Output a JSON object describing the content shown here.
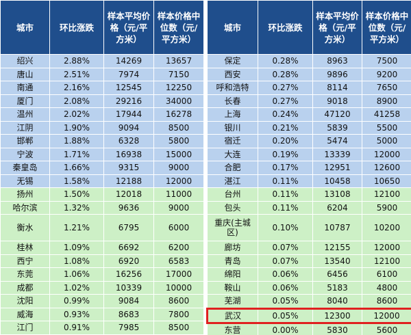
{
  "tables": [
    {
      "header": [
        "城市",
        "环比涨跌",
        "样本平均价格（元/平方米）",
        "样本价格中位数（元/平方米）"
      ],
      "rows": [
        [
          "绍兴",
          "2.88%",
          "14269",
          "13657"
        ],
        [
          "唐山",
          "2.51%",
          "7974",
          "7150"
        ],
        [
          "南通",
          "2.16%",
          "12545",
          "12250"
        ],
        [
          "厦门",
          "2.08%",
          "29216",
          "34000"
        ],
        [
          "温州",
          "2.02%",
          "17944",
          "16278"
        ],
        [
          "江阴",
          "1.90%",
          "9094",
          "8500"
        ],
        [
          "邯郸",
          "1.88%",
          "6328",
          "5800"
        ],
        [
          "宁波",
          "1.71%",
          "16938",
          "15000"
        ],
        [
          "秦皇岛",
          "1.66%",
          "9315",
          "9000"
        ],
        [
          "无锡",
          "1.58%",
          "12188",
          "12000"
        ],
        [
          "扬州",
          "1.50%",
          "12018",
          "11000"
        ],
        [
          "哈尔滨",
          "1.32%",
          "9636",
          "9000"
        ],
        [
          "衡水",
          "1.21%",
          "6795",
          "6000"
        ],
        [
          "桂林",
          "1.09%",
          "6692",
          "6200"
        ],
        [
          "西宁",
          "1.08%",
          "6920",
          "6583"
        ],
        [
          "东莞",
          "1.06%",
          "16256",
          "17000"
        ],
        [
          "成都",
          "1.02%",
          "10339",
          "10000"
        ],
        [
          "沈阳",
          "0.99%",
          "9084",
          "8600"
        ],
        [
          "威海",
          "0.93%",
          "8683",
          "7800"
        ],
        [
          "江门",
          "0.91%",
          "7985",
          "8500"
        ]
      ]
    },
    {
      "header": [
        "城市",
        "环比涨跌",
        "样本平均价格（元/平方米）",
        "样本价格中位数（元/平方米）"
      ],
      "rows": [
        [
          "保定",
          "0.28%",
          "8963",
          "7500"
        ],
        [
          "西安",
          "0.28%",
          "9896",
          "9200"
        ],
        [
          "呼和浩特",
          "0.27%",
          "8114",
          "7650"
        ],
        [
          "长春",
          "0.27%",
          "9018",
          "8900"
        ],
        [
          "上海",
          "0.24%",
          "47120",
          "41258"
        ],
        [
          "银川",
          "0.21%",
          "5839",
          "5500"
        ],
        [
          "宿迁",
          "0.20%",
          "5474",
          "5000"
        ],
        [
          "大连",
          "0.19%",
          "13339",
          "12000"
        ],
        [
          "合肥",
          "0.17%",
          "12951",
          "12600"
        ],
        [
          "湛江",
          "0.11%",
          "10458",
          "10650"
        ],
        [
          "台州",
          "0.11%",
          "13108",
          "12100"
        ],
        [
          "包头",
          "0.11%",
          "6204",
          "5900"
        ],
        [
          "重庆(主城区)",
          "0.10%",
          "10787",
          "10200"
        ],
        [
          "廊坊",
          "0.07%",
          "12155",
          "12000"
        ],
        [
          "青岛",
          "0.07%",
          "13540",
          "12100"
        ],
        [
          "绵阳",
          "0.06%",
          "6456",
          "6100"
        ],
        [
          "鞍山",
          "0.06%",
          "5183",
          "4800"
        ],
        [
          "芜湖",
          "0.05%",
          "8040",
          "8600"
        ],
        [
          "武汉",
          "0.05%",
          "12300",
          "12000"
        ],
        [
          "东营",
          "0.00%",
          "5830",
          "5600"
        ]
      ],
      "highlighted_row": 18
    }
  ]
}
